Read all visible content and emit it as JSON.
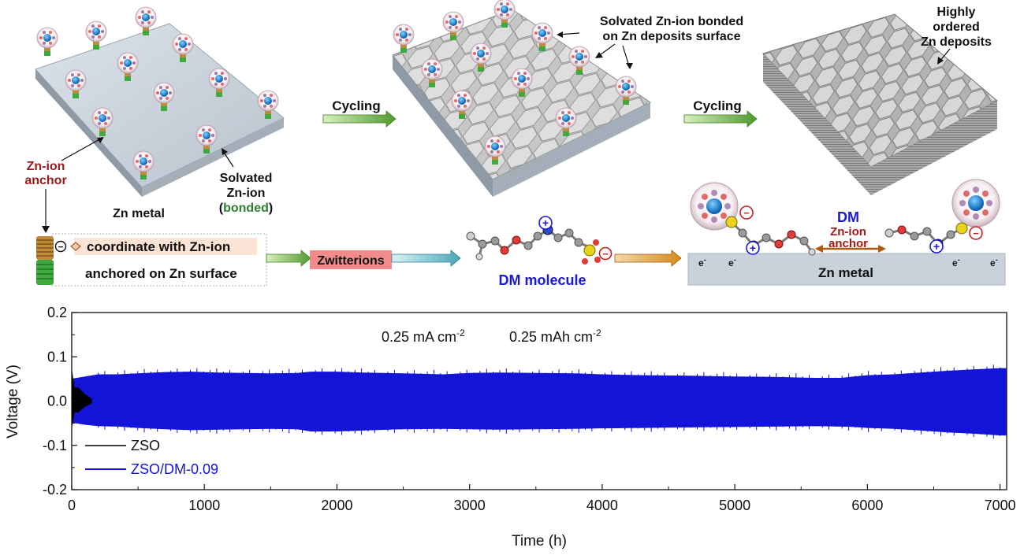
{
  "schematic": {
    "cycling_label_1": "Cycling",
    "cycling_label_2": "Cycling",
    "annotation_bonded_line1": "Solvated Zn-ion bonded",
    "annotation_bonded_line2": "on Zn deposits surface",
    "annotation_ordered_line1": "Highly",
    "annotation_ordered_line2": "ordered",
    "annotation_ordered_line3": "Zn deposits",
    "anchor_label_line1": "Zn-ion",
    "anchor_label_line2": "anchor",
    "zn_metal_label": "Zn metal",
    "solvated_line1": "Solvated",
    "solvated_line2": "Zn-ion",
    "solvated_paren_open": "(",
    "solvated_bonded": "bonded",
    "solvated_paren_close": ")",
    "legend_box_line1": "coordinate with Zn-ion",
    "legend_box_line2": "anchored on Zn surface",
    "zwitterions_label": "Zwitterions",
    "dm_molecule_label": "DM molecule",
    "dm_label": "DM",
    "dm_anchor_line1": "Zn-ion",
    "dm_anchor_line2": "anchor",
    "zn_metal_bar_label": "Zn metal",
    "electron_symbol": "e",
    "electron_charge": "-",
    "plus_symbol": "+",
    "minus_symbol": "−",
    "colors": {
      "title_red": "#a01818",
      "bonded_green": "#2e7d32",
      "dm_blue": "#1a1ad0",
      "zwitter_fill": "#f28b8b",
      "arrow_green": "#6bb23a",
      "zn_plate": "#c9d2da"
    }
  },
  "chart_data": {
    "type": "line",
    "title": "",
    "annotation_current": "0.25 mA cm",
    "annotation_current_exp": "-2",
    "annotation_capacity": "0.25 mAh cm",
    "annotation_capacity_exp": "-2",
    "xlabel": "Time (h)",
    "ylabel": "Voltage (V)",
    "xlim": [
      0,
      7050
    ],
    "ylim": [
      -0.2,
      0.2
    ],
    "xticks": [
      0,
      1000,
      2000,
      3000,
      4000,
      5000,
      6000,
      7000
    ],
    "yticks": [
      -0.2,
      -0.1,
      0.0,
      0.1,
      0.2
    ],
    "ytick_labels": [
      "-0.2",
      "-0.1",
      "0.0",
      "0.1",
      "0.2"
    ],
    "legend_position": "bottom-left",
    "series": [
      {
        "name": "ZSO",
        "color": "#000000",
        "x": [
          0,
          20,
          50,
          100,
          150
        ],
        "upper": [
          0.07,
          0.03,
          0.03,
          0.015,
          0.005
        ],
        "lower": [
          -0.06,
          -0.025,
          -0.025,
          -0.012,
          -0.005
        ]
      },
      {
        "name": "ZSO/DM-0.09",
        "color": "#1414d8",
        "x": [
          0,
          100,
          200,
          350,
          500,
          700,
          900,
          1100,
          1300,
          1500,
          1700,
          1800,
          2000,
          2200,
          2500,
          2800,
          3000,
          3200,
          3500,
          3800,
          4000,
          4300,
          4600,
          5000,
          5300,
          5600,
          5800,
          5900,
          6000,
          6200,
          6400,
          6600,
          6800,
          7000,
          7050
        ],
        "upper": [
          0.05,
          0.055,
          0.06,
          0.06,
          0.062,
          0.065,
          0.066,
          0.064,
          0.063,
          0.062,
          0.063,
          0.066,
          0.066,
          0.064,
          0.062,
          0.06,
          0.063,
          0.064,
          0.063,
          0.062,
          0.06,
          0.058,
          0.057,
          0.055,
          0.054,
          0.052,
          0.052,
          0.055,
          0.058,
          0.06,
          0.064,
          0.068,
          0.071,
          0.074,
          0.074
        ],
        "lower": [
          -0.048,
          -0.053,
          -0.056,
          -0.057,
          -0.06,
          -0.063,
          -0.065,
          -0.064,
          -0.063,
          -0.062,
          -0.063,
          -0.068,
          -0.068,
          -0.066,
          -0.063,
          -0.062,
          -0.063,
          -0.064,
          -0.063,
          -0.062,
          -0.061,
          -0.06,
          -0.059,
          -0.058,
          -0.057,
          -0.056,
          -0.057,
          -0.058,
          -0.06,
          -0.062,
          -0.066,
          -0.07,
          -0.073,
          -0.077,
          -0.077
        ]
      }
    ]
  }
}
